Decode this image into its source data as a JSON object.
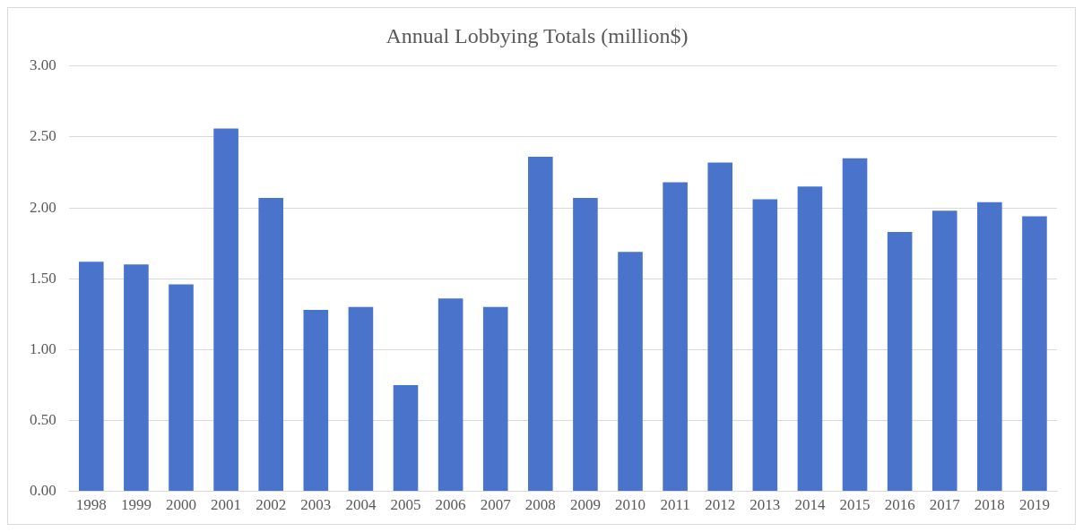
{
  "chart_data": {
    "type": "bar",
    "title": "Annual Lobbying Totals (million$)",
    "categories": [
      "1998",
      "1999",
      "2000",
      "2001",
      "2002",
      "2003",
      "2004",
      "2005",
      "2006",
      "2007",
      "2008",
      "2009",
      "2010",
      "2011",
      "2012",
      "2013",
      "2014",
      "2015",
      "2016",
      "2017",
      "2018",
      "2019"
    ],
    "values": [
      1.62,
      1.6,
      1.46,
      2.56,
      2.07,
      1.28,
      1.3,
      0.75,
      1.36,
      1.3,
      2.36,
      2.07,
      1.69,
      2.18,
      2.32,
      2.06,
      2.15,
      2.35,
      1.83,
      1.98,
      2.04,
      1.94
    ],
    "color": "#4a74cc",
    "ylim": [
      0,
      3
    ],
    "yticks": [
      {
        "value": 0,
        "label": "0.00"
      },
      {
        "value": 0.5,
        "label": "0.50"
      },
      {
        "value": 1,
        "label": "1.00"
      },
      {
        "value": 1.5,
        "label": "1.50"
      },
      {
        "value": 2,
        "label": "2.00"
      },
      {
        "value": 2.5,
        "label": "2.50"
      },
      {
        "value": 3,
        "label": "3.00"
      }
    ],
    "grid": "y",
    "legend": false
  }
}
